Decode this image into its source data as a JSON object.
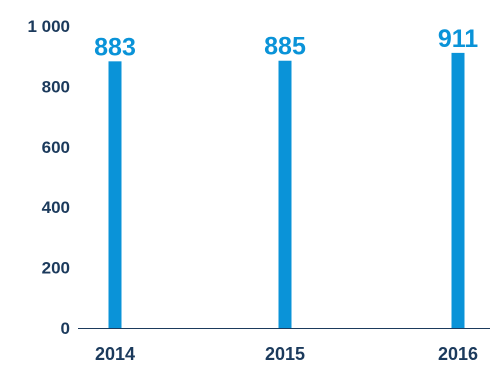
{
  "chart_data": {
    "type": "bar",
    "title": "",
    "xlabel": "",
    "ylabel": "",
    "categories": [
      "2014",
      "2015",
      "2016"
    ],
    "values": [
      883,
      885,
      911
    ],
    "data_labels": [
      "883",
      "885",
      "911"
    ],
    "ylim": [
      0,
      1000
    ],
    "yticks": [
      0,
      200,
      400,
      600,
      800,
      1000
    ],
    "ytick_labels": [
      "0",
      "200",
      "400",
      "600",
      "800",
      "1 000"
    ],
    "grid": false,
    "legend": "none",
    "colors": {
      "bar": "#0a93d8",
      "data_label": "#0a93d8",
      "tick_label": "#1b3a5c",
      "axis": "#1b3a5c"
    }
  }
}
